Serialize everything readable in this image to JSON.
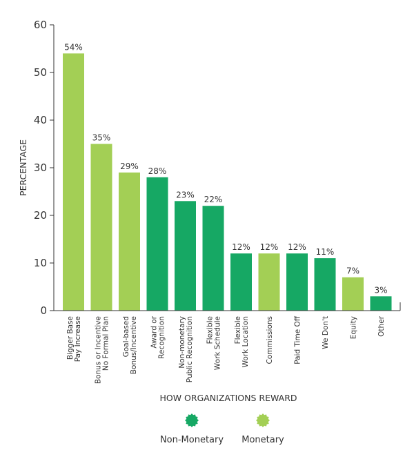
{
  "chart_data": {
    "type": "bar",
    "title": "",
    "xlabel": "HOW ORGANIZATIONS REWARD",
    "ylabel": "PERCENTAGE",
    "ylim": [
      0,
      60
    ],
    "yticks": [
      0,
      10,
      20,
      30,
      40,
      50,
      60
    ],
    "grid": false,
    "legend_position": "bottom",
    "categories": [
      [
        "Bigger Base",
        "Pay Increase"
      ],
      [
        "Bonus or Incentive",
        "No Formal Plan"
      ],
      [
        "Goal-based",
        "Bonus/Incentive"
      ],
      [
        "Award or",
        "Recognition"
      ],
      [
        "Non-monetary",
        "Public Recognition"
      ],
      [
        "Flexible",
        "Work Schedule"
      ],
      [
        "Flexible",
        "Work Location"
      ],
      [
        "Commissions"
      ],
      [
        "Paid Time Off"
      ],
      [
        "We Don't"
      ],
      [
        "Equity"
      ],
      [
        "Other"
      ]
    ],
    "values": [
      54,
      35,
      29,
      28,
      23,
      22,
      12,
      12,
      12,
      11,
      7,
      3
    ],
    "value_labels": [
      "54%",
      "35%",
      "29%",
      "28%",
      "23%",
      "22%",
      "12%",
      "12%",
      "12%",
      "11%",
      "7%",
      "3%"
    ],
    "groups": [
      "Monetary",
      "Monetary",
      "Monetary",
      "Non-Monetary",
      "Non-Monetary",
      "Non-Monetary",
      "Non-Monetary",
      "Monetary",
      "Non-Monetary",
      "Non-Monetary",
      "Monetary",
      "Non-Monetary"
    ],
    "legend": [
      {
        "name": "Non-Monetary",
        "color": "#16a864",
        "icon": "starburst-icon"
      },
      {
        "name": "Monetary",
        "color": "#a3cf55",
        "icon": "starburst-icon"
      }
    ]
  }
}
